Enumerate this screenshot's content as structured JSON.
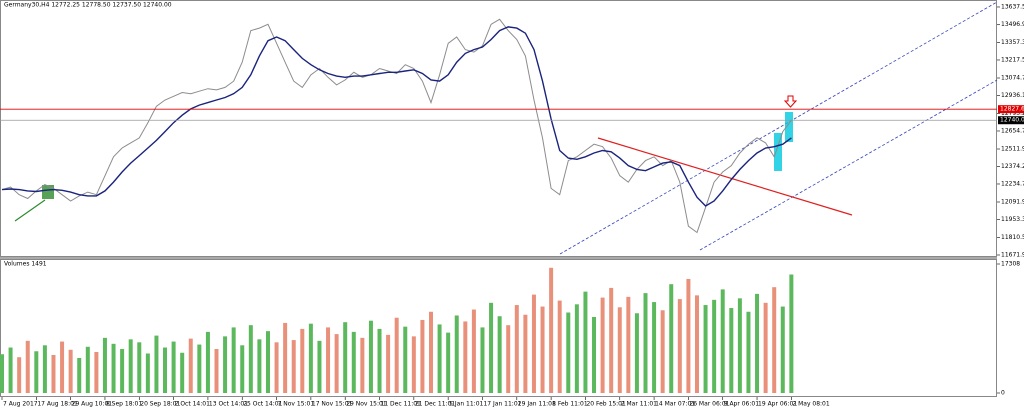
{
  "chart_data": [
    {
      "type": "line",
      "title": "Germany30,H4  12772.25 12778.50 12737.50 12740.00",
      "categories": [
        "7 Aug 2017",
        null,
        null,
        null,
        "17 Aug 18:01",
        null,
        null,
        null,
        "29 Aug 10:01",
        null,
        null,
        null,
        "8 Sep 18:01",
        null,
        null,
        null,
        "20 Sep 18:01",
        null,
        null,
        null,
        "2 Oct 14:01",
        null,
        null,
        null,
        "13 Oct 14:01",
        null,
        null,
        null,
        "25 Oct 14:01",
        null,
        null,
        null,
        "7 Nov 15:01",
        null,
        null,
        null,
        "17 Nov 15:01",
        null,
        null,
        null,
        "29 Nov 15:01",
        null,
        null,
        null,
        "11 Dec 11:01",
        null,
        null,
        null,
        "21 Dec 11:01",
        null,
        null,
        null,
        "5 Jan 11:01",
        null,
        null,
        null,
        "17 Jan 11:01",
        null,
        null,
        null,
        "29 Jan 11:01",
        null,
        null,
        null,
        "8 Feb 11:01",
        null,
        null,
        null,
        "20 Feb 15:01",
        null,
        null,
        null,
        "2 Mar 11:01",
        null,
        null,
        null,
        "14 Mar 07:01",
        null,
        null,
        null,
        "26 Mar 06:01",
        null,
        null,
        null,
        "9 Apr 06:01",
        null,
        null,
        null,
        "19 Apr 06:01",
        null,
        null,
        null,
        "2 May 08:01"
      ],
      "series": [
        {
          "color": "#8c8c8c",
          "values": [
            12190,
            12210,
            12150,
            12120,
            12180,
            12230,
            12200,
            12150,
            12100,
            12140,
            12170,
            12150,
            12300,
            12450,
            12520,
            12560,
            12600,
            12720,
            12850,
            12900,
            12930,
            12960,
            12950,
            12970,
            12990,
            12980,
            13000,
            13050,
            13200,
            13450,
            13470,
            13500,
            13350,
            13200,
            13050,
            13000,
            13100,
            13150,
            13080,
            13020,
            13060,
            13120,
            13080,
            13100,
            13150,
            13130,
            13110,
            13180,
            13150,
            13050,
            12880,
            13100,
            13350,
            13400,
            13300,
            13280,
            13330,
            13500,
            13540,
            13450,
            13380,
            13250,
            12900,
            12600,
            12200,
            12150,
            12420,
            12450,
            12500,
            12550,
            12530,
            12440,
            12300,
            12250,
            12350,
            12420,
            12450,
            12380,
            12420,
            12250,
            11900,
            11850,
            12050,
            12250,
            12330,
            12380,
            12480,
            12550,
            12600,
            12560,
            12450,
            12650,
            12740
          ]
        },
        {
          "color": "#1a237e",
          "values": [
            12190,
            12195,
            12190,
            12180,
            12175,
            12185,
            12190,
            12185,
            12170,
            12150,
            12140,
            12140,
            12180,
            12250,
            12330,
            12400,
            12460,
            12520,
            12580,
            12650,
            12720,
            12780,
            12830,
            12860,
            12880,
            12900,
            12920,
            12950,
            13000,
            13100,
            13250,
            13370,
            13400,
            13370,
            13300,
            13230,
            13180,
            13140,
            13110,
            13090,
            13080,
            13090,
            13090,
            13100,
            13110,
            13120,
            13120,
            13130,
            13140,
            13110,
            13060,
            13050,
            13100,
            13200,
            13270,
            13300,
            13320,
            13380,
            13450,
            13480,
            13470,
            13430,
            13300,
            13050,
            12750,
            12500,
            12440,
            12430,
            12450,
            12480,
            12500,
            12490,
            12440,
            12380,
            12350,
            12340,
            12370,
            12400,
            12410,
            12380,
            12250,
            12130,
            12060,
            12100,
            12180,
            12270,
            12350,
            12420,
            12480,
            12520,
            12530,
            12550,
            12600
          ]
        }
      ],
      "ylim": [
        11656,
        13677
      ],
      "yticks": [
        {
          "value": 13637.5,
          "label": "13637.50"
        },
        {
          "value": 13496.9,
          "label": "13496.90"
        },
        {
          "value": 13357.3,
          "label": "13357.30"
        },
        {
          "value": 13217.5,
          "label": "13217.50"
        },
        {
          "value": 13074.7,
          "label": "13074.70"
        },
        {
          "value": 12936.1,
          "label": "12936.10"
        },
        {
          "value": 12793.2,
          "label": "12793.20"
        },
        {
          "value": 12654.7,
          "label": "12654.70"
        },
        {
          "value": 12511.9,
          "label": "12511.90"
        },
        {
          "value": 12374.2,
          "label": "12374.20"
        },
        {
          "value": 12234.7,
          "label": "12234.70"
        },
        {
          "value": 12091.9,
          "label": "12091.90"
        },
        {
          "value": 11953.3,
          "label": "11953.30"
        },
        {
          "value": 11810.5,
          "label": "11810.50"
        },
        {
          "value": 11671.9,
          "label": "11671.90"
        }
      ],
      "hlines": [
        {
          "value": 12827.62,
          "color": "#e00000"
        },
        {
          "value": {
            "value": 12740,
            "label": "12740.00"
          },
          "color": "#000000"
        }
      ]
    },
    {
      "type": "bar",
      "title": "Volumes 1491",
      "up_color": "#5cb85c",
      "down_color": "#e8907a",
      "values": [
        5200,
        6100,
        4800,
        7000,
        5600,
        6400,
        5100,
        6900,
        5800,
        4700,
        6200,
        5500,
        7400,
        6600,
        5900,
        7200,
        6800,
        5300,
        7700,
        6100,
        6900,
        5400,
        7300,
        6500,
        8200,
        5900,
        7600,
        8800,
        6400,
        9100,
        7200,
        8300,
        6800,
        9400,
        7100,
        8600,
        9300,
        7000,
        8800,
        7900,
        9500,
        8200,
        7400,
        9700,
        8600,
        7800,
        10100,
        8900,
        7600,
        9800,
        10900,
        9200,
        8100,
        10400,
        9600,
        11200,
        8800,
        12100,
        10300,
        9100,
        11800,
        10500,
        13200,
        11600,
        16800,
        12400,
        10800,
        11900,
        13600,
        10200,
        12800,
        14100,
        11500,
        12900,
        10700,
        13400,
        12200,
        11100,
        14600,
        12600,
        15300,
        13100,
        11800,
        12500,
        13900,
        11400,
        12700,
        10900,
        13300,
        12100,
        14200,
        11600,
        15900
      ],
      "ylim": [
        0,
        17308
      ],
      "yticks": [
        0,
        17308
      ]
    }
  ]
}
